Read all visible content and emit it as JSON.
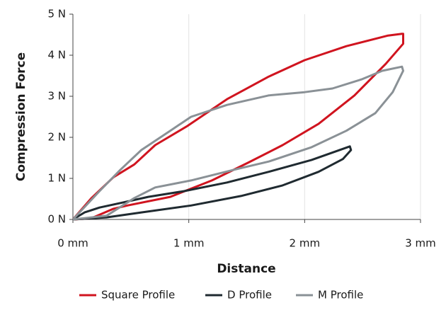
{
  "chart_data": {
    "type": "line",
    "x_label": "Distance",
    "y_label": "Compression Force",
    "xlim": [
      0,
      3
    ],
    "ylim": [
      0,
      5
    ],
    "xticks": [
      {
        "value": 0,
        "label": "0 mm"
      },
      {
        "value": 1,
        "label": "1 mm"
      },
      {
        "value": 2,
        "label": "2 mm"
      },
      {
        "value": 3,
        "label": "3 mm"
      }
    ],
    "yticks": [
      {
        "value": 0,
        "label": "0 N"
      },
      {
        "value": 1,
        "label": "1 N"
      },
      {
        "value": 2,
        "label": "2 N"
      },
      {
        "value": 3,
        "label": "3 N"
      },
      {
        "value": 4,
        "label": "4 N"
      },
      {
        "value": 5,
        "label": "5 N"
      }
    ],
    "grid": true,
    "series": [
      {
        "name": "Square Profile",
        "color": "#d0141f",
        "x": [
          0,
          0.16,
          0.35,
          0.53,
          0.71,
          0.99,
          1.33,
          1.69,
          2.0,
          2.36,
          2.72,
          2.84,
          2.85,
          2.85,
          2.7,
          2.43,
          2.12,
          1.81,
          1.51,
          1.2,
          0.84,
          0.47,
          0.35,
          0.16,
          0.01
        ],
        "values": [
          0,
          0.52,
          1.03,
          1.34,
          1.81,
          2.28,
          2.93,
          3.48,
          3.88,
          4.22,
          4.48,
          4.52,
          4.52,
          4.28,
          3.79,
          3.02,
          2.33,
          1.81,
          1.38,
          0.95,
          0.55,
          0.34,
          0.26,
          0.03,
          0
        ]
      },
      {
        "name": "D Profile",
        "color": "#1f2a30",
        "x": [
          0,
          0.1,
          0.23,
          0.41,
          0.65,
          0.96,
          1.33,
          1.69,
          2.06,
          2.39,
          2.4,
          2.33,
          2.12,
          1.81,
          1.45,
          1.02,
          0.59,
          0.29,
          0
        ],
        "values": [
          0,
          0.17,
          0.29,
          0.4,
          0.55,
          0.69,
          0.9,
          1.16,
          1.45,
          1.78,
          1.69,
          1.47,
          1.16,
          0.83,
          0.57,
          0.34,
          0.17,
          0.05,
          0
        ]
      },
      {
        "name": "M Profile",
        "color": "#8a9196",
        "x": [
          0,
          0.23,
          0.41,
          0.59,
          0.84,
          1.02,
          1.33,
          1.69,
          2.0,
          2.24,
          2.49,
          2.67,
          2.84,
          2.85,
          2.76,
          2.61,
          2.36,
          2.06,
          1.69,
          1.39,
          1.02,
          0.71,
          0.53,
          0.29,
          0
        ],
        "values": [
          0,
          0.69,
          1.21,
          1.69,
          2.16,
          2.5,
          2.79,
          3.02,
          3.1,
          3.19,
          3.41,
          3.62,
          3.72,
          3.62,
          3.1,
          2.59,
          2.16,
          1.76,
          1.41,
          1.21,
          0.95,
          0.78,
          0.52,
          0.09,
          0
        ]
      }
    ]
  }
}
